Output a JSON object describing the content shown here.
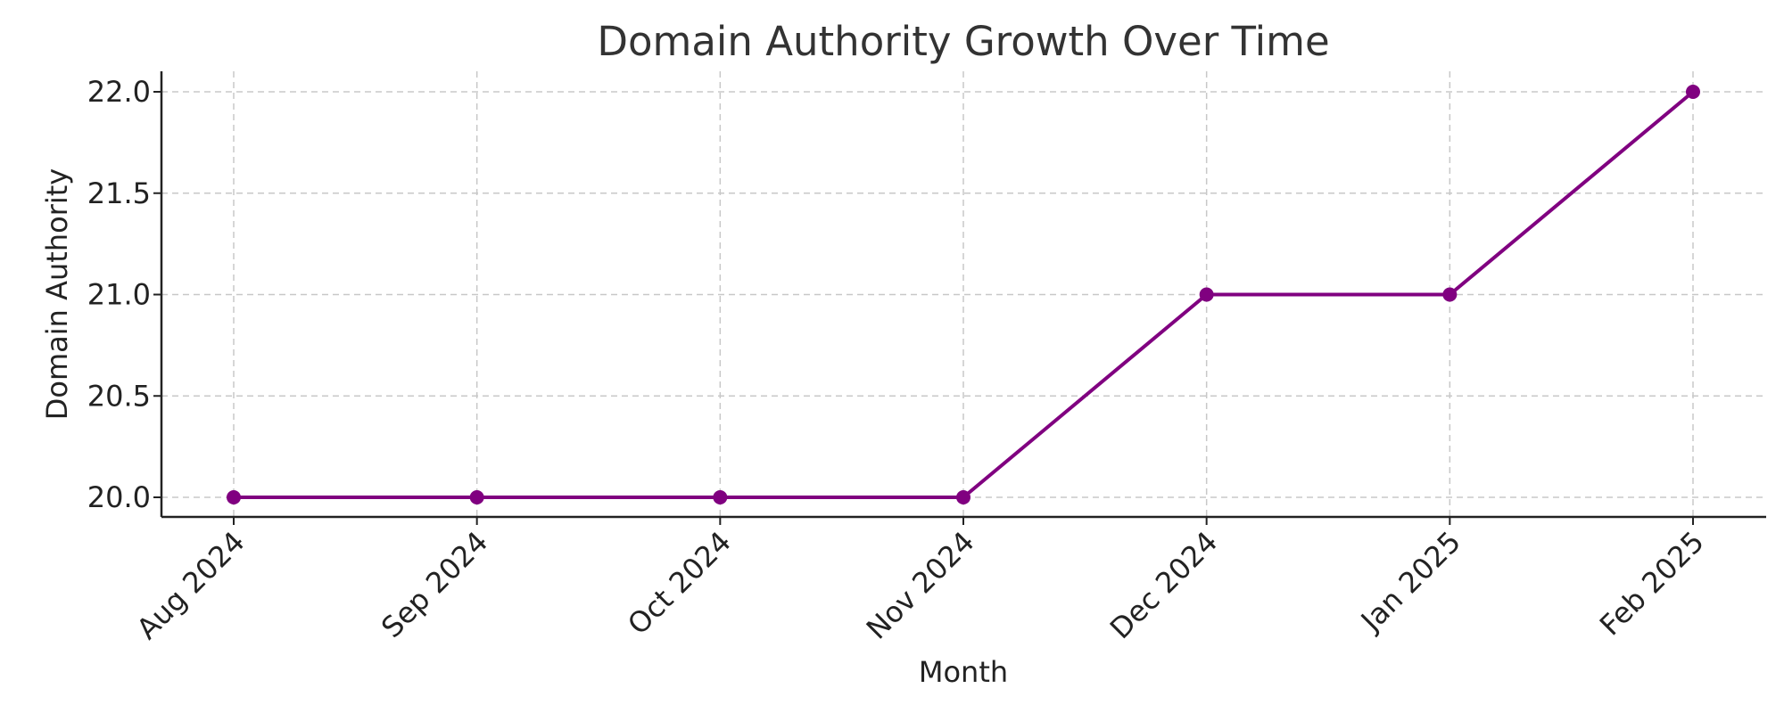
{
  "chart_data": {
    "type": "line",
    "title": "Domain Authority Growth Over Time",
    "xlabel": "Month",
    "ylabel": "Domain Authority",
    "categories": [
      "Aug 2024",
      "Sep 2024",
      "Oct 2024",
      "Nov 2024",
      "Dec 2024",
      "Jan 2025",
      "Feb 2025"
    ],
    "series": [
      {
        "values": [
          20,
          20,
          20,
          20,
          21,
          21,
          22
        ],
        "color": "#800080",
        "marker": "circle"
      }
    ],
    "ylim": [
      19.9,
      22.1
    ],
    "yticks": [
      20.0,
      20.5,
      21.0,
      21.5,
      22.0
    ],
    "ytick_labels": [
      "20.0",
      "20.5",
      "21.0",
      "21.5",
      "22.0"
    ],
    "grid": true,
    "grid_style": "dashed",
    "xtick_rotation": 45
  }
}
